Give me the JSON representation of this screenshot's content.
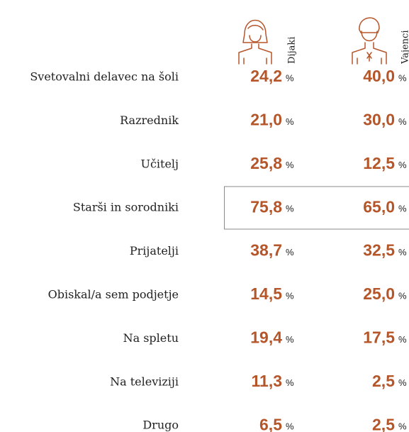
{
  "table": {
    "columns": [
      "Dijaki",
      "Vajenci"
    ],
    "unit": "%",
    "rows": [
      {
        "label": "Svetovalni delavec na šoli",
        "values": [
          "24,2",
          "40,0"
        ]
      },
      {
        "label": "Razrednik",
        "values": [
          "21,0",
          "30,0"
        ]
      },
      {
        "label": "Učitelj",
        "values": [
          "25,8",
          "12,5"
        ]
      },
      {
        "label": "Starši in sorodniki",
        "values": [
          "75,8",
          "65,0"
        ]
      },
      {
        "label": "Prijatelji",
        "values": [
          "38,7",
          "32,5"
        ]
      },
      {
        "label": "Obiskal/a sem podjetje",
        "values": [
          "14,5",
          "25,0"
        ]
      },
      {
        "label": "Na spletu",
        "values": [
          "19,4",
          "17,5"
        ]
      },
      {
        "label": "Na televiziji",
        "values": [
          "11,3",
          "2,5"
        ]
      },
      {
        "label": "Drugo",
        "values": [
          "6,5",
          "2,5"
        ]
      }
    ]
  }
}
